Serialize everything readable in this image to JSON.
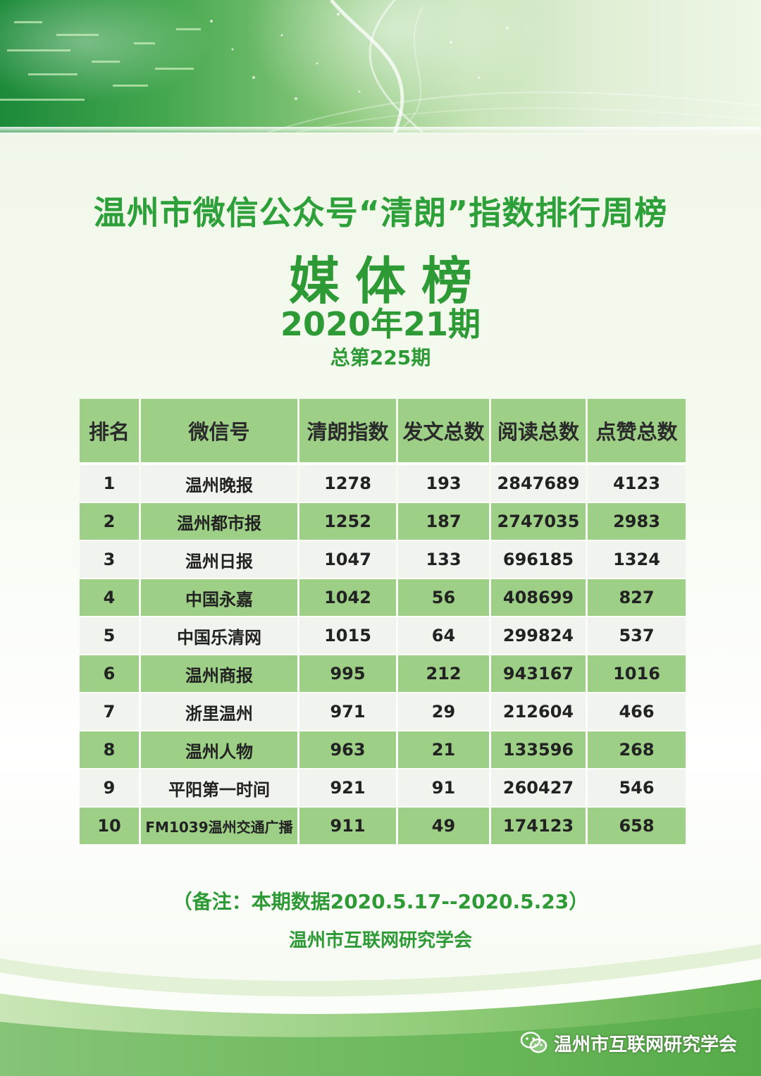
{
  "header": {
    "title": "温州市微信公众号“清朗”指数排行周榜",
    "subtitle": "媒体榜",
    "period": "2020年21期",
    "total": "总第225期"
  },
  "table": {
    "columns": [
      "排名",
      "微信号",
      "清朗指数",
      "发文总数",
      "阅读总数",
      "点赞总数"
    ],
    "rows": [
      [
        "1",
        "温州晚报",
        "1278",
        "193",
        "2847689",
        "4123"
      ],
      [
        "2",
        "温州都市报",
        "1252",
        "187",
        "2747035",
        "2983"
      ],
      [
        "3",
        "温州日报",
        "1047",
        "133",
        "696185",
        "1324"
      ],
      [
        "4",
        "中国永嘉",
        "1042",
        "56",
        "408699",
        "827"
      ],
      [
        "5",
        "中国乐清网",
        "1015",
        "64",
        "299824",
        "537"
      ],
      [
        "6",
        "温州商报",
        "995",
        "212",
        "943167",
        "1016"
      ],
      [
        "7",
        "浙里温州",
        "971",
        "29",
        "212604",
        "466"
      ],
      [
        "8",
        "温州人物",
        "963",
        "21",
        "133596",
        "268"
      ],
      [
        "9",
        "平阳第一时间",
        "921",
        "91",
        "260427",
        "546"
      ],
      [
        "10",
        "FM1039温州交通广播",
        "911",
        "49",
        "174123",
        "658"
      ]
    ]
  },
  "footer": {
    "note": "（备注：本期数据2020.5.17--2020.5.23）",
    "org": "温州市互联网研究学会"
  },
  "watermark": {
    "icon": "wechat-icon",
    "text": "温州市互联网研究学会"
  },
  "colors": {
    "accent": "#2e9a36",
    "header_cell": "#9dcf86",
    "row_light": "#f1f3ef"
  }
}
